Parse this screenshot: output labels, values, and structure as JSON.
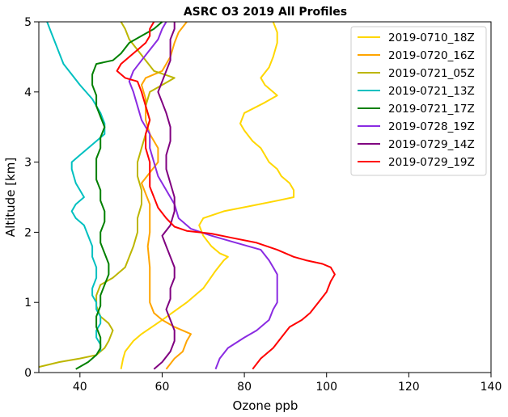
{
  "chart_data": {
    "type": "line",
    "title": "ASRC O3 2019 All Profiles",
    "xlabel": "Ozone ppb",
    "ylabel": "Altitude [km]",
    "xlim": [
      30,
      140
    ],
    "ylim": [
      0,
      5
    ],
    "xticks": [
      40,
      60,
      80,
      100,
      120,
      140
    ],
    "yticks": [
      0,
      1,
      2,
      3,
      4,
      5
    ],
    "grid": false,
    "legend_position": "top-right",
    "series": [
      {
        "name": "2019-0710_18Z",
        "color": "#ffd700",
        "points": [
          [
            50,
            0.05
          ],
          [
            50.5,
            0.2
          ],
          [
            51,
            0.3
          ],
          [
            53,
            0.45
          ],
          [
            55,
            0.55
          ],
          [
            60,
            0.75
          ],
          [
            66,
            1.0
          ],
          [
            70,
            1.2
          ],
          [
            73,
            1.45
          ],
          [
            75,
            1.6
          ],
          [
            76,
            1.65
          ],
          [
            74,
            1.7
          ],
          [
            72,
            1.8
          ],
          [
            70,
            1.95
          ],
          [
            69,
            2.1
          ],
          [
            70,
            2.2
          ],
          [
            75,
            2.3
          ],
          [
            82,
            2.38
          ],
          [
            88,
            2.45
          ],
          [
            92,
            2.5
          ],
          [
            92,
            2.6
          ],
          [
            91,
            2.7
          ],
          [
            89,
            2.8
          ],
          [
            88,
            2.9
          ],
          [
            86,
            3.0
          ],
          [
            85,
            3.1
          ],
          [
            84,
            3.2
          ],
          [
            82,
            3.3
          ],
          [
            80,
            3.45
          ],
          [
            79,
            3.55
          ],
          [
            80,
            3.7
          ],
          [
            85,
            3.85
          ],
          [
            88,
            3.95
          ],
          [
            85,
            4.1
          ],
          [
            84,
            4.2
          ],
          [
            86,
            4.35
          ],
          [
            87,
            4.5
          ],
          [
            88,
            4.7
          ],
          [
            88,
            4.85
          ],
          [
            87,
            5.0
          ]
        ]
      },
      {
        "name": "2019-0720_16Z",
        "color": "#ffa500",
        "points": [
          [
            61,
            0.05
          ],
          [
            63,
            0.2
          ],
          [
            65,
            0.3
          ],
          [
            66,
            0.45
          ],
          [
            67,
            0.55
          ],
          [
            63,
            0.65
          ],
          [
            60,
            0.75
          ],
          [
            58,
            0.85
          ],
          [
            57,
            1.0
          ],
          [
            57,
            1.2
          ],
          [
            57,
            1.5
          ],
          [
            56.5,
            1.8
          ],
          [
            57,
            2.0
          ],
          [
            57,
            2.2
          ],
          [
            57,
            2.4
          ],
          [
            56,
            2.55
          ],
          [
            55,
            2.7
          ],
          [
            57,
            2.85
          ],
          [
            59,
            3.0
          ],
          [
            59,
            3.2
          ],
          [
            57,
            3.4
          ],
          [
            56,
            3.6
          ],
          [
            56,
            3.9
          ],
          [
            55,
            4.1
          ],
          [
            56,
            4.2
          ],
          [
            60,
            4.3
          ],
          [
            62,
            4.5
          ],
          [
            63,
            4.7
          ],
          [
            64,
            4.85
          ],
          [
            66,
            5.0
          ]
        ]
      },
      {
        "name": "2019-0721_05Z",
        "color": "#bdb600",
        "points": [
          [
            30,
            0.08
          ],
          [
            35,
            0.15
          ],
          [
            40,
            0.2
          ],
          [
            44,
            0.25
          ],
          [
            46,
            0.35
          ],
          [
            47,
            0.45
          ],
          [
            48,
            0.6
          ],
          [
            47,
            0.7
          ],
          [
            45,
            0.8
          ],
          [
            44,
            0.95
          ],
          [
            44,
            1.1
          ],
          [
            45,
            1.25
          ],
          [
            48,
            1.35
          ],
          [
            51,
            1.5
          ],
          [
            52,
            1.65
          ],
          [
            53,
            1.8
          ],
          [
            54,
            2.0
          ],
          [
            54,
            2.2
          ],
          [
            55,
            2.4
          ],
          [
            55,
            2.6
          ],
          [
            54,
            2.8
          ],
          [
            54,
            3.0
          ],
          [
            55,
            3.2
          ],
          [
            56,
            3.4
          ],
          [
            57,
            3.6
          ],
          [
            56,
            3.8
          ],
          [
            57,
            4.0
          ],
          [
            60,
            4.1
          ],
          [
            63,
            4.2
          ],
          [
            58,
            4.3
          ],
          [
            56,
            4.45
          ],
          [
            54,
            4.6
          ],
          [
            52,
            4.75
          ],
          [
            51,
            4.9
          ],
          [
            50,
            5.0
          ]
        ]
      },
      {
        "name": "2019-0721_13Z",
        "color": "#00c0c0",
        "points": [
          [
            45,
            0.3
          ],
          [
            45,
            0.4
          ],
          [
            44,
            0.5
          ],
          [
            44,
            0.6
          ],
          [
            45,
            0.7
          ],
          [
            45,
            0.8
          ],
          [
            44,
            0.9
          ],
          [
            44,
            1.0
          ],
          [
            43,
            1.1
          ],
          [
            43,
            1.2
          ],
          [
            44,
            1.35
          ],
          [
            44,
            1.5
          ],
          [
            43,
            1.65
          ],
          [
            43,
            1.8
          ],
          [
            42,
            1.95
          ],
          [
            41,
            2.1
          ],
          [
            39,
            2.2
          ],
          [
            38,
            2.3
          ],
          [
            39,
            2.4
          ],
          [
            41,
            2.5
          ],
          [
            40,
            2.6
          ],
          [
            39,
            2.7
          ],
          [
            38,
            2.9
          ],
          [
            38,
            3.0
          ],
          [
            40,
            3.1
          ],
          [
            42,
            3.2
          ],
          [
            44,
            3.3
          ],
          [
            46,
            3.4
          ],
          [
            46,
            3.55
          ],
          [
            45,
            3.7
          ],
          [
            43,
            3.9
          ],
          [
            40,
            4.1
          ],
          [
            38,
            4.25
          ],
          [
            36,
            4.4
          ],
          [
            35,
            4.55
          ],
          [
            34,
            4.7
          ],
          [
            33,
            4.85
          ],
          [
            32,
            5.0
          ]
        ]
      },
      {
        "name": "2019-0721_17Z",
        "color": "#008000",
        "points": [
          [
            39,
            0.05
          ],
          [
            42,
            0.15
          ],
          [
            44,
            0.25
          ],
          [
            45,
            0.35
          ],
          [
            45,
            0.5
          ],
          [
            44,
            0.65
          ],
          [
            44,
            0.8
          ],
          [
            45,
            0.95
          ],
          [
            45,
            1.1
          ],
          [
            46,
            1.25
          ],
          [
            47,
            1.4
          ],
          [
            47,
            1.55
          ],
          [
            46,
            1.7
          ],
          [
            45,
            1.85
          ],
          [
            45,
            2.0
          ],
          [
            46,
            2.15
          ],
          [
            46,
            2.3
          ],
          [
            45,
            2.45
          ],
          [
            45,
            2.6
          ],
          [
            44,
            2.75
          ],
          [
            44,
            2.9
          ],
          [
            44,
            3.05
          ],
          [
            45,
            3.2
          ],
          [
            45,
            3.35
          ],
          [
            46,
            3.5
          ],
          [
            45,
            3.65
          ],
          [
            44,
            3.8
          ],
          [
            44,
            3.95
          ],
          [
            43,
            4.1
          ],
          [
            43,
            4.25
          ],
          [
            44,
            4.4
          ],
          [
            48,
            4.45
          ],
          [
            50,
            4.55
          ],
          [
            52,
            4.7
          ],
          [
            55,
            4.8
          ],
          [
            58,
            4.9
          ],
          [
            60,
            5.0
          ]
        ]
      },
      {
        "name": "2019-0728_19Z",
        "color": "#8a2be2",
        "points": [
          [
            73,
            0.05
          ],
          [
            74,
            0.2
          ],
          [
            76,
            0.35
          ],
          [
            80,
            0.5
          ],
          [
            83,
            0.6
          ],
          [
            86,
            0.75
          ],
          [
            87,
            0.9
          ],
          [
            88,
            1.0
          ],
          [
            88,
            1.2
          ],
          [
            88,
            1.4
          ],
          [
            87,
            1.5
          ],
          [
            86,
            1.6
          ],
          [
            84,
            1.75
          ],
          [
            78,
            1.85
          ],
          [
            72,
            1.95
          ],
          [
            67,
            2.05
          ],
          [
            64,
            2.2
          ],
          [
            63,
            2.4
          ],
          [
            61,
            2.6
          ],
          [
            59,
            2.8
          ],
          [
            58,
            3.0
          ],
          [
            57,
            3.2
          ],
          [
            57,
            3.4
          ],
          [
            55,
            3.6
          ],
          [
            54,
            3.8
          ],
          [
            53,
            4.0
          ],
          [
            52,
            4.15
          ],
          [
            53,
            4.3
          ],
          [
            55,
            4.45
          ],
          [
            57,
            4.6
          ],
          [
            59,
            4.75
          ],
          [
            60,
            4.9
          ],
          [
            61,
            5.0
          ]
        ]
      },
      {
        "name": "2019-0729_14Z",
        "color": "#800080",
        "points": [
          [
            58,
            0.05
          ],
          [
            60,
            0.15
          ],
          [
            62,
            0.3
          ],
          [
            63,
            0.45
          ],
          [
            63,
            0.6
          ],
          [
            62,
            0.75
          ],
          [
            61,
            0.9
          ],
          [
            62,
            1.05
          ],
          [
            62,
            1.2
          ],
          [
            63,
            1.35
          ],
          [
            63,
            1.5
          ],
          [
            62,
            1.65
          ],
          [
            61,
            1.8
          ],
          [
            60,
            1.95
          ],
          [
            62,
            2.1
          ],
          [
            63,
            2.3
          ],
          [
            63,
            2.5
          ],
          [
            62,
            2.7
          ],
          [
            61,
            2.9
          ],
          [
            61,
            3.1
          ],
          [
            62,
            3.3
          ],
          [
            62,
            3.5
          ],
          [
            61,
            3.7
          ],
          [
            60,
            3.85
          ],
          [
            59,
            4.0
          ],
          [
            60,
            4.15
          ],
          [
            61,
            4.3
          ],
          [
            62,
            4.45
          ],
          [
            62,
            4.6
          ],
          [
            62,
            4.75
          ],
          [
            63,
            4.9
          ],
          [
            63,
            5.0
          ]
        ]
      },
      {
        "name": "2019-0729_19Z",
        "color": "#ff0000",
        "points": [
          [
            82,
            0.05
          ],
          [
            84,
            0.2
          ],
          [
            87,
            0.35
          ],
          [
            89,
            0.5
          ],
          [
            91,
            0.65
          ],
          [
            94,
            0.75
          ],
          [
            96,
            0.85
          ],
          [
            98,
            1.0
          ],
          [
            100,
            1.15
          ],
          [
            101,
            1.3
          ],
          [
            102,
            1.4
          ],
          [
            101,
            1.5
          ],
          [
            99,
            1.55
          ],
          [
            95,
            1.6
          ],
          [
            92,
            1.65
          ],
          [
            88,
            1.75
          ],
          [
            83,
            1.85
          ],
          [
            77,
            1.92
          ],
          [
            72,
            1.98
          ],
          [
            66,
            2.02
          ],
          [
            63,
            2.08
          ],
          [
            61,
            2.2
          ],
          [
            59,
            2.35
          ],
          [
            58,
            2.5
          ],
          [
            57,
            2.65
          ],
          [
            57,
            2.8
          ],
          [
            57,
            3.0
          ],
          [
            56,
            3.2
          ],
          [
            56,
            3.4
          ],
          [
            57,
            3.6
          ],
          [
            56,
            3.8
          ],
          [
            55,
            4.0
          ],
          [
            54,
            4.15
          ],
          [
            51,
            4.2
          ],
          [
            49,
            4.3
          ],
          [
            50,
            4.4
          ],
          [
            52,
            4.5
          ],
          [
            54,
            4.6
          ],
          [
            56,
            4.7
          ],
          [
            57,
            4.8
          ],
          [
            57,
            4.9
          ],
          [
            58,
            5.0
          ]
        ]
      }
    ]
  }
}
